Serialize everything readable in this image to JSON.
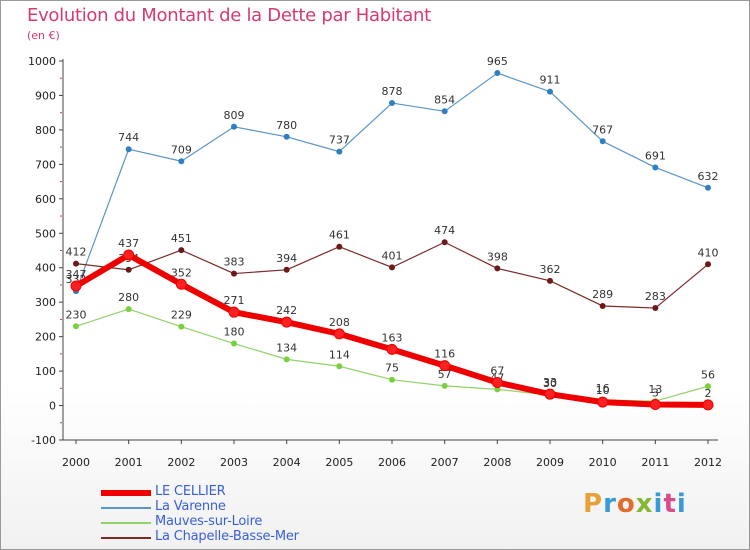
{
  "title": "Evolution du Montant de la Dette par Habitant",
  "subtitle": "(en €)",
  "brand": "Proxiti",
  "brand_colors": [
    "#e8a13a",
    "#3a9ad9",
    "#e36b2c",
    "#86b832",
    "#3a9ad9",
    "#d94b8b",
    "#3a9ad9"
  ],
  "chart_data": {
    "type": "line",
    "title": "Evolution du Montant de la Dette par Habitant",
    "subtitle": "(en €)",
    "xlabel": "",
    "ylabel": "",
    "x": [
      "2000",
      "2001",
      "2002",
      "2003",
      "2004",
      "2005",
      "2006",
      "2007",
      "2008",
      "2009",
      "2010",
      "2011",
      "2012"
    ],
    "ylim": [
      -100,
      1000
    ],
    "yticks": [
      -100,
      0,
      100,
      200,
      300,
      400,
      500,
      600,
      700,
      800,
      900,
      1000
    ],
    "grid": false,
    "legend_position": "bottom-left",
    "series": [
      {
        "name": "La Varenne",
        "color": "#5a95c8",
        "marker": "#2f7fc4",
        "width": 1.2,
        "values": [
          332,
          744,
          709,
          809,
          780,
          737,
          878,
          854,
          965,
          911,
          767,
          691,
          632
        ],
        "labels": [
          "332",
          "744",
          "709",
          "809",
          "780",
          "737",
          "878",
          "854",
          "965",
          "911",
          "767",
          "691",
          "632"
        ]
      },
      {
        "name": "La Chapelle-Basse-Mer",
        "color": "#7a2a2a",
        "marker": "#6b1a1a",
        "width": 1.2,
        "values": [
          412,
          394,
          451,
          383,
          394,
          461,
          401,
          474,
          398,
          362,
          289,
          283,
          410
        ],
        "labels": [
          "412",
          "394",
          "451",
          "383",
          "394",
          "461",
          "401",
          "474",
          "398",
          "362",
          "289",
          "283",
          "410"
        ]
      },
      {
        "name": "Mauves-sur-Loire",
        "color": "#8fd36a",
        "marker": "#7ccf3c",
        "width": 1.2,
        "values": [
          230,
          280,
          229,
          180,
          134,
          114,
          75,
          57,
          47,
          30,
          16,
          13,
          56
        ],
        "labels": [
          "230",
          "280",
          "229",
          "180",
          "134",
          "114",
          "75",
          "57",
          "47",
          "30",
          "16",
          "13",
          "56"
        ]
      },
      {
        "name": "LE CELLIER",
        "color": "#ee0000",
        "marker": "#ff2020",
        "width": 6,
        "values": [
          347,
          437,
          352,
          271,
          242,
          208,
          163,
          116,
          67,
          33,
          10,
          3,
          2
        ],
        "labels": [
          "347",
          "437",
          "352",
          "271",
          "242",
          "208",
          "163",
          "116",
          "67",
          "33",
          "10",
          "3",
          "2"
        ]
      }
    ]
  },
  "legend": [
    {
      "name": "LE CELLIER",
      "color": "#ee0000",
      "text_color": "#3a5fd9",
      "width": 6
    },
    {
      "name": "La Varenne",
      "color": "#5a95c8",
      "text_color": "#3a5fd9",
      "width": 2
    },
    {
      "name": "Mauves-sur-Loire",
      "color": "#8fd36a",
      "text_color": "#3a5fd9",
      "width": 2
    },
    {
      "name": "La Chapelle-Basse-Mer",
      "color": "#7a2a2a",
      "text_color": "#3a5fd9",
      "width": 2
    }
  ]
}
